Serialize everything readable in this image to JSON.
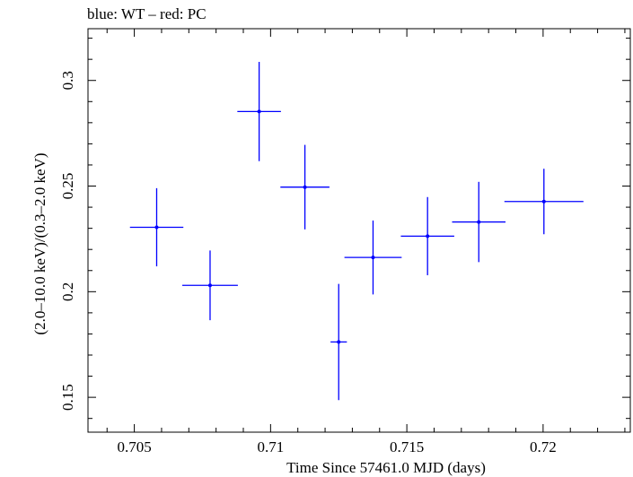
{
  "title": "blue: WT – red: PC",
  "chart_data": {
    "type": "scatter",
    "title": "blue: WT – red: PC",
    "xlabel": "Time Since 57461.0 MJD (days)",
    "ylabel": "(2.0–10.0 keV)/(0.3–2.0 keV)",
    "xlim": [
      0.7033,
      0.7232
    ],
    "ylim": [
      0.1335,
      0.3245
    ],
    "x_ticks": [
      0.705,
      0.71,
      0.715,
      0.72
    ],
    "x_tick_labels": [
      "0.705",
      "0.71",
      "0.715",
      "0.72"
    ],
    "y_ticks": [
      0.15,
      0.2,
      0.25,
      0.3
    ],
    "y_tick_labels": [
      "0.15",
      "0.2",
      "0.25",
      "0.3"
    ],
    "grid": false,
    "series": [
      {
        "name": "WT",
        "color": "#0000ff",
        "points": [
          {
            "x": 0.70582,
            "y": 0.2305,
            "xerr": 0.00098,
            "yerr": 0.0185
          },
          {
            "x": 0.70778,
            "y": 0.203,
            "xerr": 0.00102,
            "yerr": 0.0165
          },
          {
            "x": 0.70958,
            "y": 0.2853,
            "xerr": 0.0008,
            "yerr": 0.0235
          },
          {
            "x": 0.71126,
            "y": 0.2495,
            "xerr": 0.0009,
            "yerr": 0.02
          },
          {
            "x": 0.7125,
            "y": 0.1762,
            "xerr": 0.0003,
            "yerr": 0.0275
          },
          {
            "x": 0.71376,
            "y": 0.2162,
            "xerr": 0.00105,
            "yerr": 0.0175
          },
          {
            "x": 0.71576,
            "y": 0.2263,
            "xerr": 0.00098,
            "yerr": 0.0185
          },
          {
            "x": 0.71764,
            "y": 0.233,
            "xerr": 0.00098,
            "yerr": 0.019
          },
          {
            "x": 0.72003,
            "y": 0.2427,
            "xerr": 0.00145,
            "yerr": 0.0155
          }
        ]
      }
    ]
  }
}
